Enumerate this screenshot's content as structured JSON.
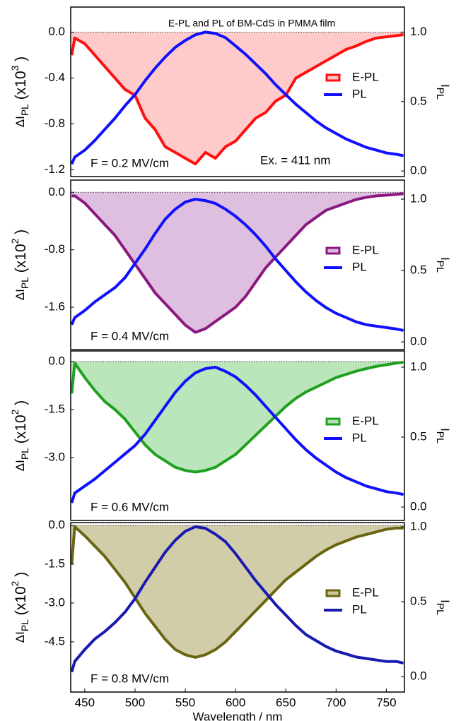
{
  "chart_data": [
    {
      "type": "line",
      "title": "E-PL and PL of BM-CdS in PMMA film",
      "ylabel": [
        "ΔI",
        "PL",
        " (x10",
        "3",
        " )"
      ],
      "y2label": [
        "I",
        "PL"
      ],
      "x": [
        437,
        440,
        450,
        460,
        470,
        480,
        490,
        500,
        510,
        520,
        530,
        540,
        550,
        560,
        570,
        580,
        590,
        600,
        610,
        620,
        630,
        640,
        650,
        660,
        670,
        680,
        690,
        700,
        710,
        720,
        730,
        740,
        750,
        760,
        767
      ],
      "xlim": [
        436,
        768
      ],
      "ylim": [
        -1.26,
        0.22
      ],
      "yticks": [
        {
          "value": 0,
          "label": "0.0"
        },
        -0.4,
        -0.8,
        -1.2
      ],
      "y2lim": [
        -0.04,
        1.18
      ],
      "y2ticks": [
        {
          "value": 0,
          "label": "0.0"
        },
        0.5,
        {
          "value": 1,
          "label": "1.0"
        }
      ],
      "series": [
        {
          "name": "E-PL",
          "color": "#ff1010",
          "fill": "#ffc4c4",
          "values": [
            -0.2,
            -0.05,
            -0.1,
            -0.2,
            -0.3,
            -0.4,
            -0.5,
            -0.55,
            -0.75,
            -0.85,
            -1.0,
            -1.05,
            -1.1,
            -1.15,
            -1.05,
            -1.1,
            -1.0,
            -0.95,
            -0.85,
            -0.75,
            -0.7,
            -0.6,
            -0.55,
            -0.4,
            -0.35,
            -0.3,
            -0.25,
            -0.2,
            -0.15,
            -0.12,
            -0.08,
            -0.05,
            -0.04,
            -0.03,
            -0.02
          ]
        },
        {
          "name": "PL",
          "color": "#1010ff",
          "axis": "y2",
          "values": [
            0.05,
            0.1,
            0.15,
            0.22,
            0.3,
            0.38,
            0.47,
            0.55,
            0.65,
            0.74,
            0.82,
            0.89,
            0.94,
            0.98,
            1.0,
            0.99,
            0.96,
            0.9,
            0.84,
            0.77,
            0.7,
            0.62,
            0.55,
            0.48,
            0.42,
            0.36,
            0.31,
            0.27,
            0.23,
            0.2,
            0.17,
            0.15,
            0.13,
            0.12,
            0.11
          ]
        }
      ],
      "annotations": [
        {
          "text": "F = 0.2 MV/cm",
          "color": "#000000"
        },
        {
          "text": "Ex. = 411 nm",
          "color": "#800060"
        }
      ]
    },
    {
      "type": "line",
      "ylabel": [
        "ΔI",
        "PL",
        " (x10",
        "2",
        " )"
      ],
      "y2label": [
        "I",
        "PL"
      ],
      "x": [
        437,
        440,
        450,
        460,
        470,
        480,
        490,
        500,
        510,
        520,
        530,
        540,
        550,
        560,
        570,
        580,
        590,
        600,
        610,
        620,
        630,
        640,
        650,
        660,
        670,
        680,
        690,
        700,
        710,
        720,
        730,
        740,
        750,
        760,
        767
      ],
      "xlim": [
        436,
        768
      ],
      "ylim": [
        -2.19,
        0.17
      ],
      "yticks": [
        {
          "value": 0,
          "label": "0.0"
        },
        -0.8,
        -1.6
      ],
      "y2lim": [
        -0.054,
        1.134
      ],
      "y2ticks": [
        {
          "value": 0,
          "label": "0.0"
        },
        0.5,
        {
          "value": 1,
          "label": "1.0"
        }
      ],
      "series": [
        {
          "name": "E-PL",
          "color": "#8b1880",
          "fill": "#dcb8dc",
          "values": [
            -0.05,
            -0.05,
            -0.15,
            -0.3,
            -0.45,
            -0.6,
            -0.8,
            -1.0,
            -1.2,
            -1.4,
            -1.55,
            -1.7,
            -1.85,
            -1.95,
            -1.9,
            -1.8,
            -1.7,
            -1.6,
            -1.45,
            -1.25,
            -1.05,
            -0.9,
            -0.75,
            -0.6,
            -0.45,
            -0.35,
            -0.25,
            -0.2,
            -0.15,
            -0.1,
            -0.07,
            -0.05,
            -0.04,
            -0.03,
            -0.02
          ]
        },
        {
          "name": "PL",
          "color": "#1010ff",
          "axis": "y2",
          "values": [
            0.12,
            0.17,
            0.22,
            0.28,
            0.33,
            0.38,
            0.45,
            0.55,
            0.65,
            0.76,
            0.86,
            0.93,
            0.98,
            1.0,
            0.99,
            0.97,
            0.93,
            0.88,
            0.82,
            0.75,
            0.67,
            0.58,
            0.5,
            0.42,
            0.35,
            0.29,
            0.24,
            0.2,
            0.17,
            0.14,
            0.12,
            0.11,
            0.1,
            0.09,
            0.08
          ]
        }
      ],
      "annotations": [
        {
          "text": "F = 0.4 MV/cm",
          "color": "#000000"
        }
      ]
    },
    {
      "type": "line",
      "ylabel": [
        "ΔI",
        "PL",
        " (x10",
        "2",
        " )"
      ],
      "y2label": [
        "I",
        "PL"
      ],
      "x": [
        437,
        440,
        450,
        460,
        470,
        480,
        490,
        500,
        510,
        520,
        530,
        540,
        550,
        560,
        570,
        580,
        590,
        600,
        610,
        620,
        630,
        640,
        650,
        660,
        670,
        680,
        690,
        700,
        710,
        720,
        730,
        740,
        750,
        760,
        767
      ],
      "xlim": [
        436,
        768
      ],
      "ylim": [
        -4.96,
        0.33
      ],
      "yticks": [
        {
          "value": 0,
          "label": "0.0"
        },
        -1.5,
        {
          "value": -3,
          "label": "-3.0"
        }
      ],
      "y2lim": [
        -0.096,
        1.116
      ],
      "y2ticks": [
        {
          "value": 0,
          "label": "0.0"
        },
        0.5,
        {
          "value": 1,
          "label": "1.0"
        }
      ],
      "series": [
        {
          "name": "E-PL",
          "color": "#20a020",
          "fill": "#b4e2b4",
          "values": [
            -1.0,
            -0.05,
            -0.5,
            -0.9,
            -1.25,
            -1.5,
            -1.8,
            -2.2,
            -2.6,
            -2.9,
            -3.1,
            -3.3,
            -3.4,
            -3.45,
            -3.4,
            -3.3,
            -3.1,
            -2.9,
            -2.6,
            -2.3,
            -2.0,
            -1.7,
            -1.4,
            -1.15,
            -0.95,
            -0.8,
            -0.65,
            -0.5,
            -0.4,
            -0.3,
            -0.22,
            -0.15,
            -0.1,
            -0.05,
            -0.02
          ]
        },
        {
          "name": "PL",
          "color": "#1010ff",
          "axis": "y2",
          "values": [
            0.03,
            0.1,
            0.15,
            0.2,
            0.26,
            0.32,
            0.38,
            0.44,
            0.52,
            0.62,
            0.72,
            0.82,
            0.9,
            0.96,
            0.99,
            1.0,
            0.97,
            0.93,
            0.87,
            0.8,
            0.72,
            0.64,
            0.56,
            0.48,
            0.41,
            0.35,
            0.3,
            0.25,
            0.21,
            0.18,
            0.15,
            0.13,
            0.11,
            0.1,
            0.09
          ]
        }
      ],
      "annotations": [
        {
          "text": "F = 0.6 MV/cm",
          "color": "#000000"
        }
      ]
    },
    {
      "type": "line",
      "xlabel": "Wavelength / nm",
      "ylabel": [
        "ΔI",
        "PL",
        " (x10",
        "2",
        " )"
      ],
      "y2label": [
        "I",
        "PL"
      ],
      "x": [
        437,
        440,
        450,
        460,
        470,
        480,
        490,
        500,
        510,
        520,
        530,
        540,
        550,
        560,
        570,
        580,
        590,
        600,
        610,
        620,
        630,
        640,
        650,
        660,
        670,
        680,
        690,
        700,
        710,
        720,
        730,
        740,
        750,
        760,
        767
      ],
      "xlim": [
        436,
        768
      ],
      "xticks": [
        450,
        500,
        550,
        600,
        650,
        700,
        750
      ],
      "ylim": [
        -6.44,
        0.11
      ],
      "yticks": [
        {
          "value": 0,
          "label": "0.0"
        },
        -1.5,
        {
          "value": -3,
          "label": "-3.0"
        },
        -4.5
      ],
      "y2lim": [
        -0.104,
        1.028
      ],
      "y2ticks": [
        {
          "value": 0,
          "label": "0.0"
        },
        0.5,
        {
          "value": 1,
          "label": "1.0"
        }
      ],
      "series": [
        {
          "name": "E-PL",
          "color": "#6b6410",
          "fill": "#cdc8a0",
          "values": [
            -1.5,
            -0.05,
            -0.4,
            -0.8,
            -1.2,
            -1.7,
            -2.2,
            -2.8,
            -3.4,
            -3.9,
            -4.4,
            -4.8,
            -5.0,
            -5.1,
            -5.0,
            -4.8,
            -4.5,
            -4.1,
            -3.7,
            -3.3,
            -2.9,
            -2.5,
            -2.1,
            -1.8,
            -1.5,
            -1.2,
            -0.95,
            -0.75,
            -0.6,
            -0.45,
            -0.35,
            -0.25,
            -0.15,
            -0.1,
            -0.1
          ]
        },
        {
          "name": "PL",
          "color": "#1a1ab0",
          "axis": "y2",
          "values": [
            0.03,
            0.1,
            0.18,
            0.25,
            0.3,
            0.36,
            0.43,
            0.52,
            0.63,
            0.73,
            0.83,
            0.91,
            0.97,
            1.0,
            0.99,
            0.95,
            0.9,
            0.82,
            0.73,
            0.64,
            0.56,
            0.48,
            0.41,
            0.34,
            0.28,
            0.24,
            0.2,
            0.17,
            0.15,
            0.13,
            0.12,
            0.11,
            0.1,
            0.1,
            0.09
          ]
        }
      ],
      "annotations": [
        {
          "text": "F = 0.8 MV/cm",
          "color": "#000000"
        }
      ]
    }
  ]
}
